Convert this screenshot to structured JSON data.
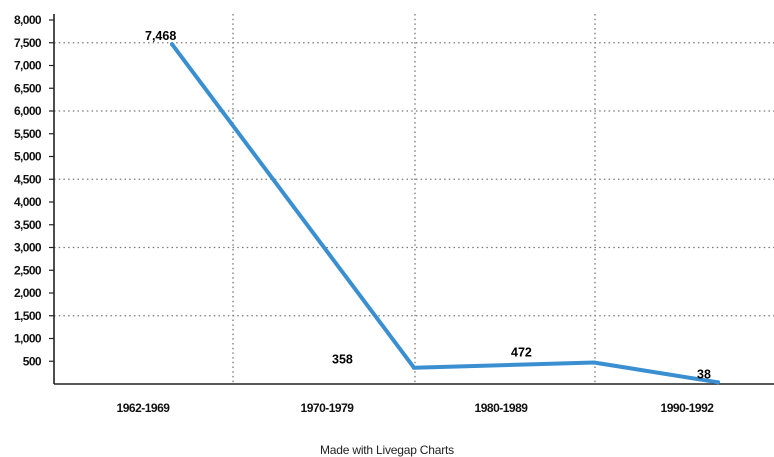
{
  "chart_data": {
    "type": "line",
    "categories": [
      "1962-1969",
      "1970-1979",
      "1980-1989",
      "1990-1992"
    ],
    "series": [
      {
        "values": [
          7468,
          358,
          472,
          38
        ],
        "data_labels": [
          "7,468",
          "358",
          "472",
          "38"
        ],
        "color": "#3a8fd1"
      }
    ],
    "yticks": [
      500,
      1000,
      1500,
      2000,
      2500,
      3000,
      3500,
      4000,
      4500,
      5000,
      5500,
      6000,
      6500,
      7000,
      7500,
      8000
    ],
    "ytick_labels": [
      "500",
      "1,000",
      "1,500",
      "2,000",
      "2,500",
      "3,000",
      "3,500",
      "4,000",
      "4,500",
      "5,000",
      "5,500",
      "6,000",
      "6,500",
      "7,000",
      "7,500",
      "8,000"
    ],
    "ylim": [
      0,
      8000
    ],
    "grid": "dotted",
    "gridlines_y": [
      1500,
      3000,
      4500,
      6000,
      7500
    ],
    "title": "",
    "xlabel": "",
    "ylabel": ""
  },
  "credit": "Made with Livegap Charts",
  "colors": {
    "line": "#3a8fd1",
    "grid": "#777777",
    "axis": "#222222",
    "text": "#111111"
  }
}
